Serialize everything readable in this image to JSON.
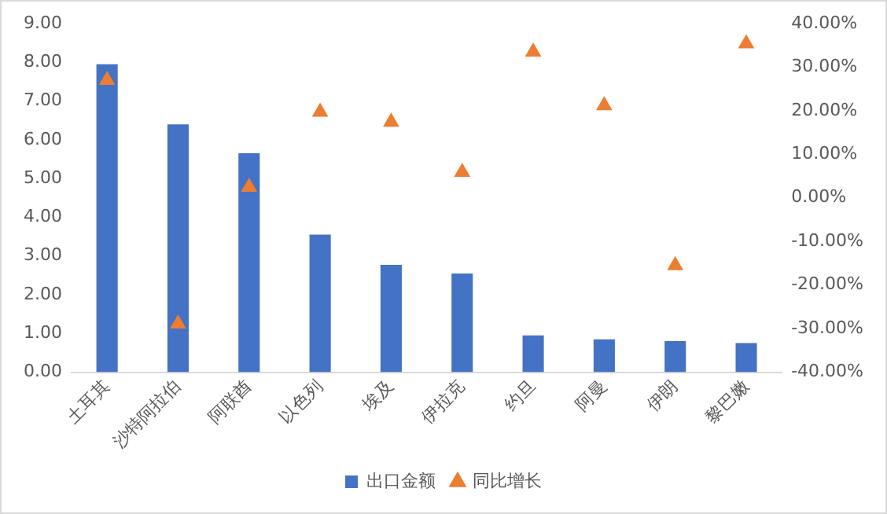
{
  "chart_data": {
    "type": "bar",
    "categories": [
      "土耳其",
      "沙特阿拉伯",
      "阿联酋",
      "以色列",
      "埃及",
      "伊拉克",
      "约旦",
      "阿曼",
      "伊朗",
      "黎巴嫩"
    ],
    "series": [
      {
        "name": "出口金额",
        "color": "#4472c4",
        "values": [
          7.95,
          6.4,
          5.65,
          3.55,
          2.77,
          2.55,
          0.95,
          0.85,
          0.8,
          0.75
        ]
      },
      {
        "name": "同比增长",
        "type": "scatter",
        "axis": "y2",
        "marker": "triangle",
        "color": "#ed7d31",
        "values": [
          27,
          -28.9,
          2.5,
          19.7,
          17.4,
          5.9,
          33.5,
          21.2,
          -15.5,
          35.4
        ]
      }
    ],
    "ylim": [
      0,
      9
    ],
    "yticks": [
      {
        "value": 0,
        "label": "0.00"
      },
      {
        "value": 1,
        "label": "1.00"
      },
      {
        "value": 2,
        "label": "2.00"
      },
      {
        "value": 3,
        "label": "3.00"
      },
      {
        "value": 4,
        "label": "4.00"
      },
      {
        "value": 5,
        "label": "5.00"
      },
      {
        "value": 6,
        "label": "6.00"
      },
      {
        "value": 7,
        "label": "7.00"
      },
      {
        "value": 8,
        "label": "8.00"
      },
      {
        "value": 9,
        "label": "9.00"
      }
    ],
    "y2lim": [
      -40,
      40
    ],
    "y2ticks": [
      {
        "value": -40,
        "label": "-40.00%"
      },
      {
        "value": -30,
        "label": "-30.00%"
      },
      {
        "value": -20,
        "label": "-20.00%"
      },
      {
        "value": -10,
        "label": "-10.00%"
      },
      {
        "value": 0,
        "label": "0.00%"
      },
      {
        "value": 10,
        "label": "10.00%"
      },
      {
        "value": 20,
        "label": "20.00%"
      },
      {
        "value": 30,
        "label": "30.00%"
      },
      {
        "value": 40,
        "label": "40.00%"
      }
    ],
    "grid": false,
    "legend": "bottom"
  }
}
